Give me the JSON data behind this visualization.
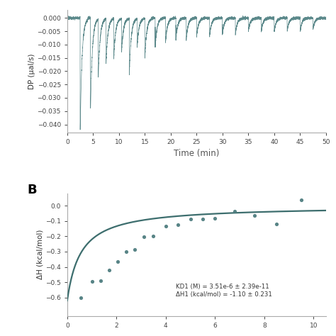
{
  "panel_A": {
    "ylabel": "DP (μal/s)",
    "xlabel": "Time (min)",
    "xlim": [
      0,
      50
    ],
    "ylim": [
      -0.043,
      0.003
    ],
    "yticks": [
      0,
      -0.005,
      -0.01,
      -0.015,
      -0.02,
      -0.025,
      -0.03,
      -0.035,
      -0.04
    ],
    "xticks": [
      0,
      5,
      10,
      15,
      20,
      25,
      30,
      35,
      40,
      45,
      50
    ],
    "line_color": "#4a7c7e",
    "injection_times": [
      2.5,
      4.5,
      6.0,
      7.5,
      9.0,
      10.5,
      12.0,
      13.5,
      15.0,
      17.0,
      19.0,
      21.0,
      23.0,
      25.0,
      27.5,
      30.0,
      32.5,
      35.0,
      37.5,
      40.0,
      42.5,
      45.0,
      47.5
    ],
    "injection_depths": [
      -0.042,
      -0.034,
      -0.022,
      -0.017,
      -0.015,
      -0.013,
      -0.021,
      -0.011,
      -0.015,
      -0.011,
      -0.009,
      -0.008,
      -0.008,
      -0.007,
      -0.007,
      -0.006,
      -0.006,
      -0.005,
      -0.005,
      -0.005,
      -0.005,
      -0.005,
      -0.004
    ],
    "noise_std": 0.0003,
    "decay_tau": 0.35,
    "baseline_noise": 0.0002
  },
  "panel_B": {
    "ylabel": "ΔH (kcal/mol)",
    "ylim": [
      -0.72,
      0.08
    ],
    "yticks": [
      0,
      -0.1,
      -0.2,
      -0.3,
      -0.4,
      -0.5,
      -0.6
    ],
    "xlim": [
      0,
      10.5
    ],
    "line_color": "#3d6e6e",
    "dot_color": "#4a7a7c",
    "annotation": "KD1 (M) = 3.51e-6 ± 2.39e-11\nΔH1 (kcal/mol) = -1.10 ± 0.231",
    "scatter_x": [
      0.55,
      1.0,
      1.35,
      1.7,
      2.05,
      2.4,
      2.75,
      3.1,
      3.5,
      4.0,
      4.5,
      5.0,
      5.5,
      6.0,
      6.8,
      7.6,
      8.5,
      9.5
    ],
    "scatter_y": [
      -0.6,
      -0.495,
      -0.49,
      -0.42,
      -0.365,
      -0.3,
      -0.285,
      -0.205,
      -0.2,
      -0.135,
      -0.125,
      -0.085,
      -0.085,
      -0.082,
      -0.038,
      -0.065,
      -0.12,
      0.038
    ],
    "fit_KD_mr": 0.55,
    "fit_DH": -0.62
  }
}
